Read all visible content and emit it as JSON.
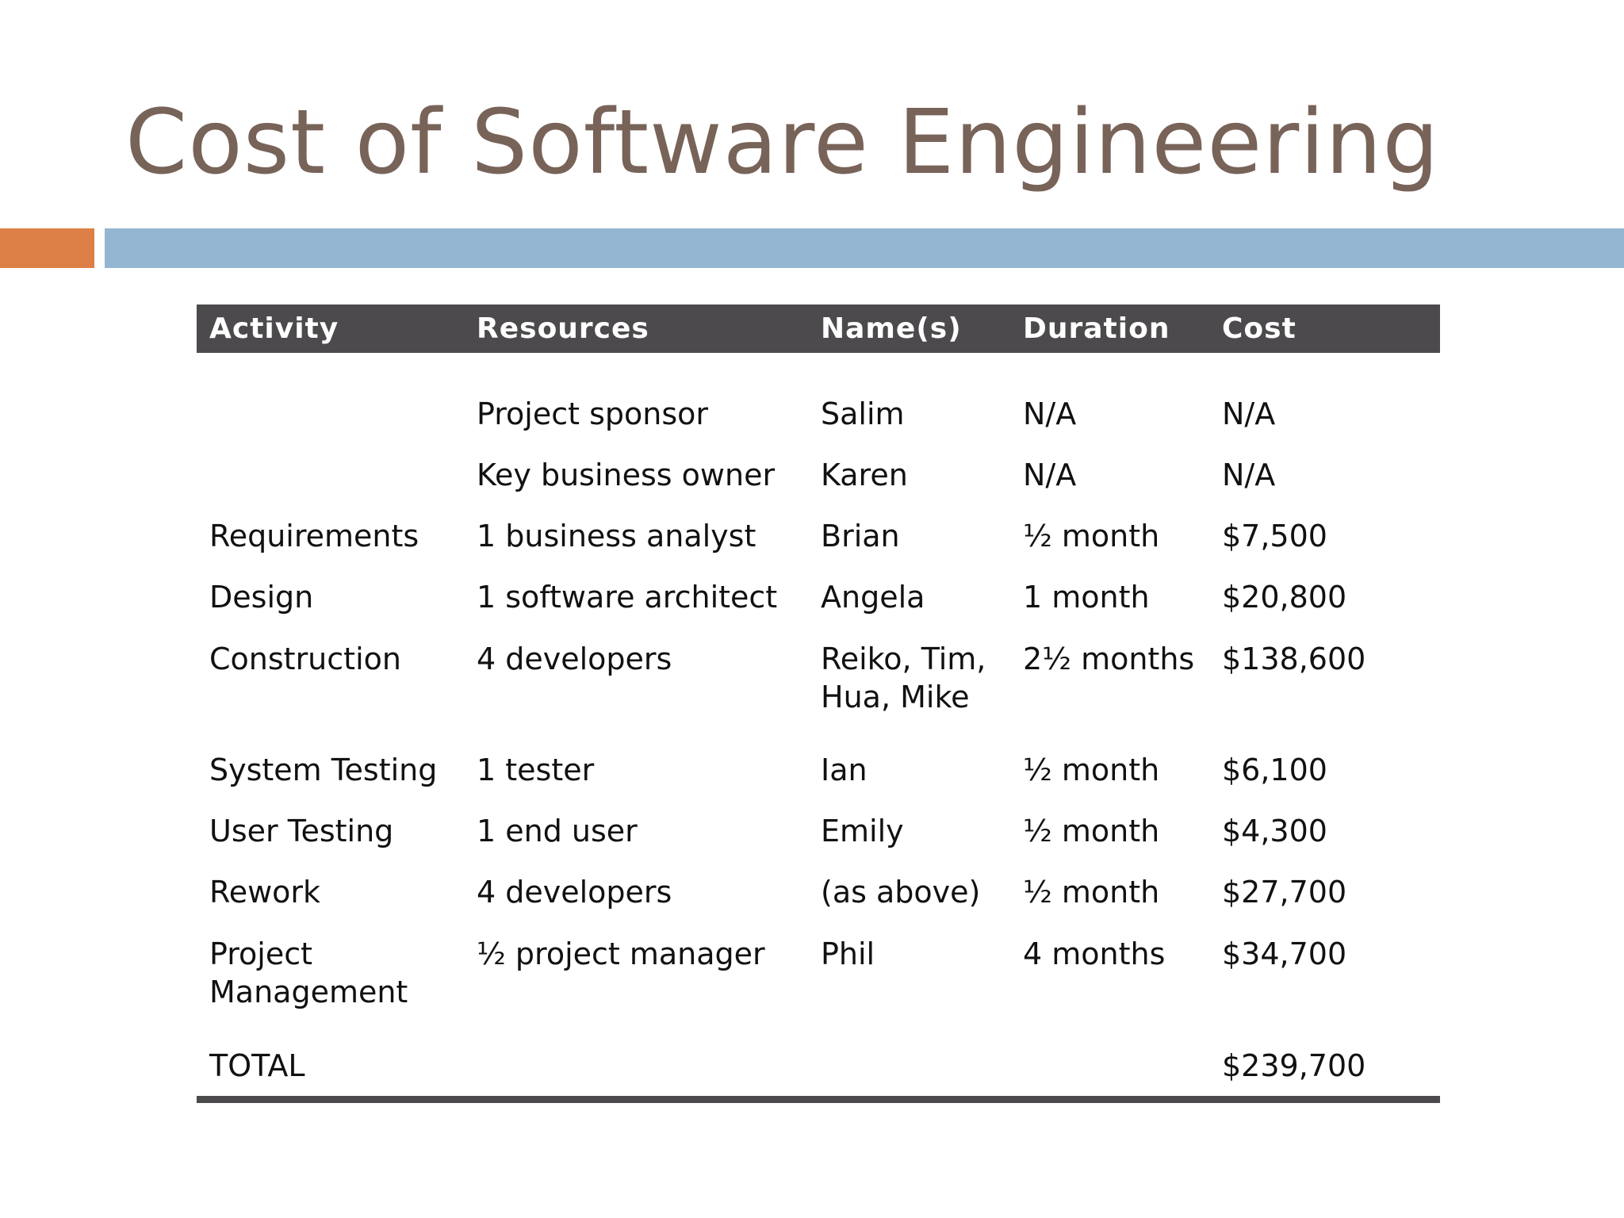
{
  "slide": {
    "title": "Cost of Software Engineering"
  },
  "colors": {
    "title": "#786359",
    "accent_orange": "#dd8047",
    "accent_blue": "#94b6d2",
    "table_header_bg": "#4d4a4d",
    "table_header_text": "#ffffff"
  },
  "table": {
    "headers": {
      "activity": "Activity",
      "resources": "Resources",
      "names": "Name(s)",
      "duration": "Duration",
      "cost": "Cost"
    },
    "rows": [
      {
        "activity": "",
        "resources": "Project sponsor",
        "names": "Salim",
        "duration": "N/A",
        "cost": "N/A"
      },
      {
        "activity": "",
        "resources": "Key business owner",
        "names": "Karen",
        "duration": "N/A",
        "cost": "N/A"
      },
      {
        "activity": "Requirements",
        "resources": "1 business analyst",
        "names": "Brian",
        "duration": "½ month",
        "cost": "$7,500"
      },
      {
        "activity": "Design",
        "resources": "1 software architect",
        "names": "Angela",
        "duration": "1 month",
        "cost": "$20,800"
      },
      {
        "activity": "Construction",
        "resources": "4 developers",
        "names": "Reiko, Tim, Hua, Mike",
        "duration": "2½ months",
        "cost": "$138,600"
      },
      {
        "activity": "System Testing",
        "resources": "1 tester",
        "names": "Ian",
        "duration": "½ month",
        "cost": "$6,100"
      },
      {
        "activity": "User Testing",
        "resources": "1 end user",
        "names": "Emily",
        "duration": "½ month",
        "cost": "$4,300"
      },
      {
        "activity": "Rework",
        "resources": "4 developers",
        "names": "(as above)",
        "duration": "½ month",
        "cost": "$27,700"
      },
      {
        "activity": "Project Management",
        "resources": "½ project manager",
        "names": "Phil",
        "duration": "4 months",
        "cost": "$34,700"
      }
    ],
    "total": {
      "label": "TOTAL",
      "cost": "$239,700"
    }
  }
}
